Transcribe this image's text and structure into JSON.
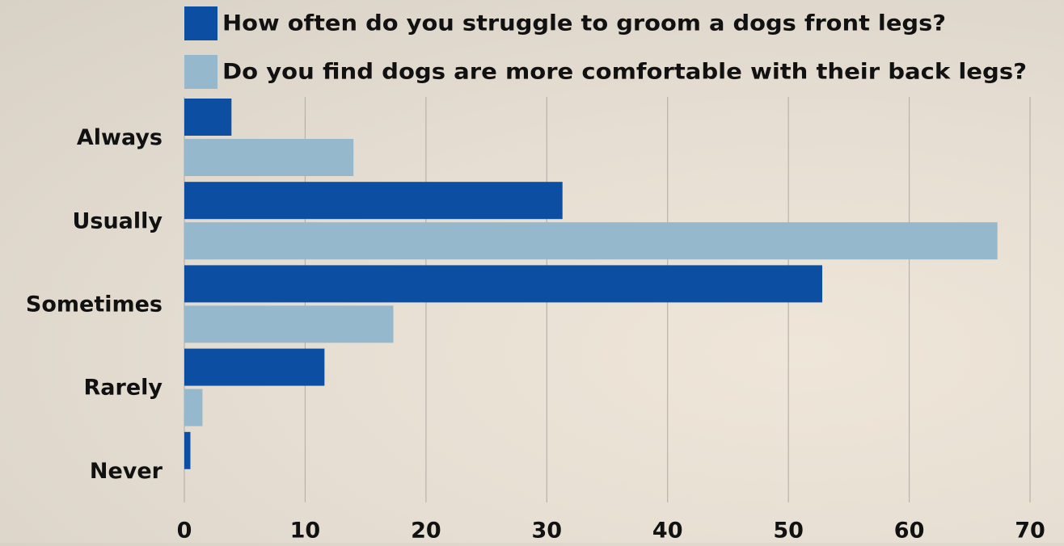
{
  "chart_data": {
    "type": "bar",
    "orientation": "horizontal",
    "categories": [
      "Always",
      "Usually",
      "Sometimes",
      "Rarely",
      "Never"
    ],
    "series": [
      {
        "name": "How often do you struggle to groom a dogs front legs?",
        "color": "#0b4ea2",
        "values": [
          3.9,
          31.3,
          52.8,
          11.6,
          0.5
        ]
      },
      {
        "name": "Do you find dogs are more comfortable with their back legs?",
        "color": "#96b8cc",
        "values": [
          14,
          67.3,
          17.3,
          1.5,
          0
        ]
      }
    ],
    "xlim": [
      0,
      70
    ],
    "xticks": [
      0,
      10,
      20,
      30,
      40,
      50,
      60,
      70
    ],
    "grid": true,
    "legend_position": "top",
    "title": "",
    "xlabel": "",
    "ylabel": ""
  }
}
